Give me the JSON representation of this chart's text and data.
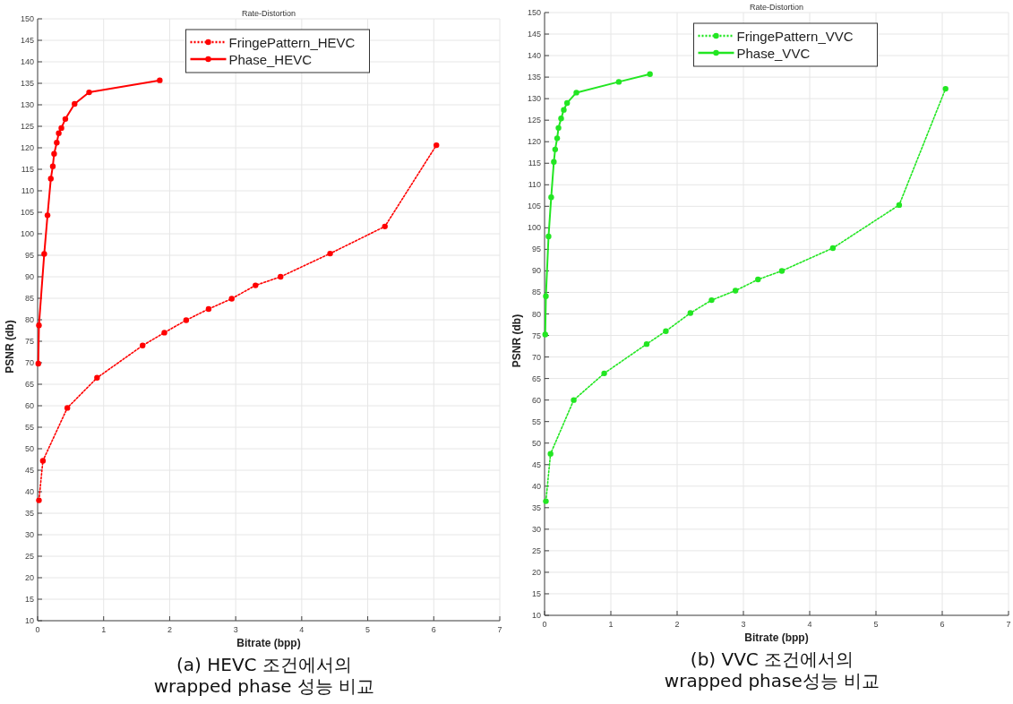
{
  "chart_data": [
    {
      "type": "line",
      "title": "Rate-Distortion",
      "xlabel": "Bitrate (bpp)",
      "ylabel": "PSNR (db)",
      "xlim": [
        0,
        7
      ],
      "xticks": [
        0,
        1,
        2,
        3,
        4,
        5,
        6,
        7
      ],
      "ylim": [
        10,
        150
      ],
      "yticks": [
        10,
        15,
        20,
        25,
        30,
        35,
        40,
        45,
        50,
        55,
        60,
        65,
        70,
        75,
        80,
        85,
        90,
        95,
        100,
        105,
        110,
        115,
        120,
        125,
        130,
        135,
        140,
        145,
        150
      ],
      "grid": true,
      "legend": "top",
      "marker": "circle",
      "annotations": [
        "(a)  HEVC 조건에서의",
        "wrapped phase 성능 비교"
      ],
      "series": [
        {
          "name": "FringePattern_HEVC",
          "color": "#ff0000",
          "line_style": "dotted",
          "x": [
            0.02,
            0.08,
            0.45,
            0.9,
            1.59,
            1.92,
            2.25,
            2.59,
            2.94,
            3.3,
            3.68,
            4.43,
            5.26,
            6.04
          ],
          "values": [
            38,
            47.2,
            59.5,
            66.5,
            74,
            77,
            79.9,
            82.5,
            84.9,
            88,
            90,
            95.4,
            101.7,
            120.6
          ]
        },
        {
          "name": "Phase_HEVC",
          "color": "#ff0000",
          "line_style": "solid",
          "x": [
            0.01,
            0.02,
            0.1,
            0.15,
            0.2,
            0.23,
            0.25,
            0.29,
            0.32,
            0.36,
            0.42,
            0.56,
            0.78,
            1.85
          ],
          "values": [
            69.8,
            78.7,
            95.3,
            104.3,
            112.8,
            115.7,
            118.6,
            121.2,
            123.4,
            124.6,
            126.7,
            130.2,
            132.9,
            135.7
          ]
        }
      ]
    },
    {
      "type": "line",
      "title": "Rate-Distortion",
      "xlabel": "Bitrate (bpp)",
      "ylabel": "PSNR (db)",
      "xlim": [
        0,
        7
      ],
      "xticks": [
        0,
        1,
        2,
        3,
        4,
        5,
        6,
        7
      ],
      "ylim": [
        10,
        150
      ],
      "yticks": [
        10,
        15,
        20,
        25,
        30,
        35,
        40,
        45,
        50,
        55,
        60,
        65,
        70,
        75,
        80,
        85,
        90,
        95,
        100,
        105,
        110,
        115,
        120,
        125,
        130,
        135,
        140,
        145,
        150
      ],
      "grid": true,
      "legend": "top",
      "marker": "circle",
      "annotations": [
        "(b) VVC 조건에서의",
        "wrapped phase성능 비교"
      ],
      "series": [
        {
          "name": "FringePattern_VVC",
          "color": "#22e622",
          "line_style": "dotted",
          "x": [
            0.02,
            0.09,
            0.44,
            0.9,
            1.54,
            1.83,
            2.2,
            2.52,
            2.88,
            3.22,
            3.58,
            4.35,
            5.35,
            6.05
          ],
          "values": [
            36.5,
            47.5,
            60,
            66.2,
            73,
            76,
            80.2,
            83.2,
            85.4,
            88,
            90,
            95.3,
            105.3,
            132.3
          ]
        },
        {
          "name": "Phase_VVC",
          "color": "#22e622",
          "line_style": "solid",
          "x": [
            0.01,
            0.02,
            0.06,
            0.1,
            0.14,
            0.16,
            0.19,
            0.21,
            0.25,
            0.29,
            0.34,
            0.48,
            1.12,
            1.59
          ],
          "values": [
            75.2,
            84.1,
            98,
            107.1,
            115.3,
            118.2,
            120.8,
            123.2,
            125.4,
            127.4,
            129,
            131.4,
            133.9,
            135.7
          ]
        }
      ]
    }
  ]
}
